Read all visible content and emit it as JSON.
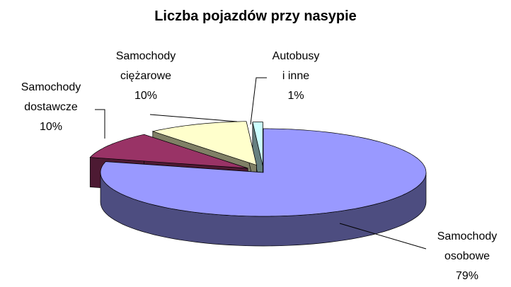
{
  "chart_data": {
    "type": "pie3d",
    "title": "Liczba pojazdów przy nasypie",
    "categories": [
      "Samochody osobowe",
      "Samochody dostawcze",
      "Samochody ciężarowe",
      "Autobusy i inne"
    ],
    "values": [
      79,
      10,
      10,
      1
    ],
    "value_labels": [
      "79%",
      "10%",
      "10%",
      "1%"
    ],
    "colors": [
      "#9999ff",
      "#993366",
      "#ffffcc",
      "#ccffff"
    ]
  }
}
